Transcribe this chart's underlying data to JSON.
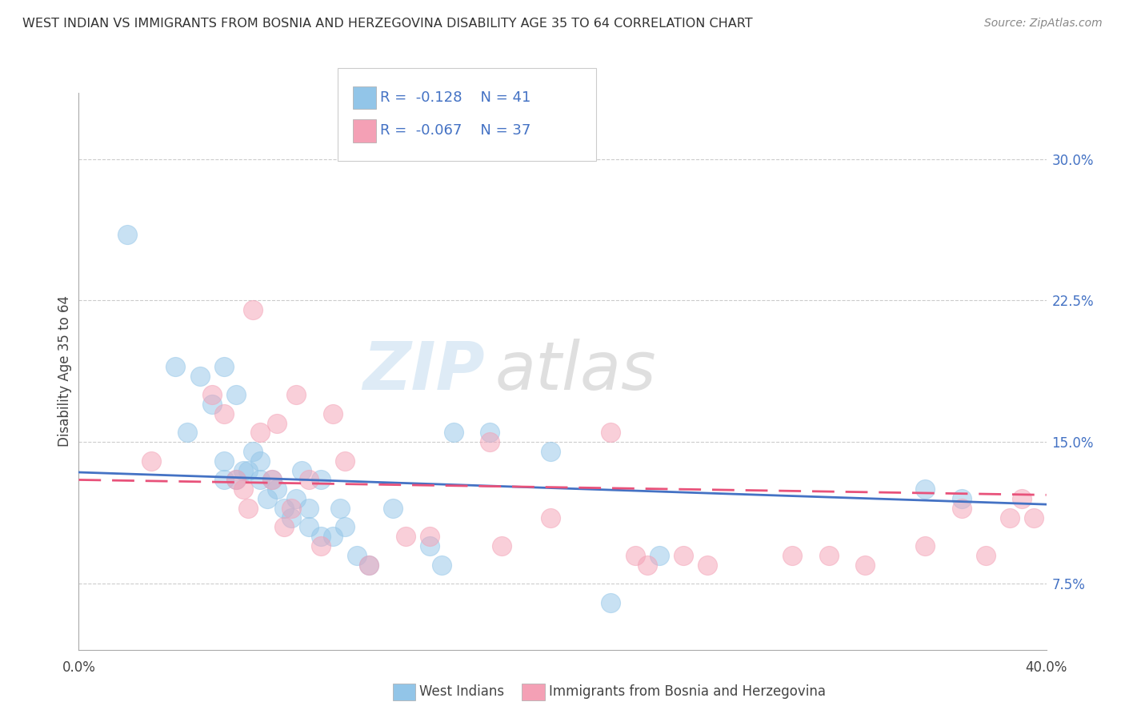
{
  "title": "WEST INDIAN VS IMMIGRANTS FROM BOSNIA AND HERZEGOVINA DISABILITY AGE 35 TO 64 CORRELATION CHART",
  "source": "Source: ZipAtlas.com",
  "ylabel": "Disability Age 35 to 64",
  "yticks": [
    0.075,
    0.15,
    0.225,
    0.3
  ],
  "ytick_labels": [
    "7.5%",
    "15.0%",
    "22.5%",
    "30.0%"
  ],
  "xlim": [
    0.0,
    0.4
  ],
  "ylim": [
    0.04,
    0.335
  ],
  "legend1_r": "-0.128",
  "legend1_n": "41",
  "legend2_r": "-0.067",
  "legend2_n": "37",
  "legend1_label": "West Indians",
  "legend2_label": "Immigrants from Bosnia and Herzegovina",
  "color_blue": "#92c5e8",
  "color_pink": "#f4a0b5",
  "watermark_zip": "ZIP",
  "watermark_atlas": "atlas",
  "blue_scatter_x": [
    0.02,
    0.04,
    0.045,
    0.05,
    0.055,
    0.06,
    0.06,
    0.06,
    0.065,
    0.065,
    0.068,
    0.07,
    0.072,
    0.075,
    0.075,
    0.078,
    0.08,
    0.082,
    0.085,
    0.088,
    0.09,
    0.092,
    0.095,
    0.095,
    0.1,
    0.1,
    0.105,
    0.108,
    0.11,
    0.115,
    0.12,
    0.13,
    0.145,
    0.15,
    0.155,
    0.17,
    0.195,
    0.22,
    0.24,
    0.35,
    0.365
  ],
  "blue_scatter_y": [
    0.26,
    0.19,
    0.155,
    0.185,
    0.17,
    0.19,
    0.13,
    0.14,
    0.175,
    0.13,
    0.135,
    0.135,
    0.145,
    0.13,
    0.14,
    0.12,
    0.13,
    0.125,
    0.115,
    0.11,
    0.12,
    0.135,
    0.105,
    0.115,
    0.1,
    0.13,
    0.1,
    0.115,
    0.105,
    0.09,
    0.085,
    0.115,
    0.095,
    0.085,
    0.155,
    0.155,
    0.145,
    0.065,
    0.09,
    0.125,
    0.12
  ],
  "pink_scatter_x": [
    0.03,
    0.055,
    0.06,
    0.065,
    0.068,
    0.07,
    0.072,
    0.075,
    0.08,
    0.082,
    0.085,
    0.088,
    0.09,
    0.095,
    0.1,
    0.105,
    0.11,
    0.12,
    0.135,
    0.145,
    0.17,
    0.175,
    0.195,
    0.22,
    0.23,
    0.235,
    0.25,
    0.26,
    0.295,
    0.31,
    0.325,
    0.35,
    0.365,
    0.375,
    0.385,
    0.39,
    0.395
  ],
  "pink_scatter_y": [
    0.14,
    0.175,
    0.165,
    0.13,
    0.125,
    0.115,
    0.22,
    0.155,
    0.13,
    0.16,
    0.105,
    0.115,
    0.175,
    0.13,
    0.095,
    0.165,
    0.14,
    0.085,
    0.1,
    0.1,
    0.15,
    0.095,
    0.11,
    0.155,
    0.09,
    0.085,
    0.09,
    0.085,
    0.09,
    0.09,
    0.085,
    0.095,
    0.115,
    0.09,
    0.11,
    0.12,
    0.11
  ],
  "blue_line_x": [
    0.0,
    0.4
  ],
  "blue_line_y": [
    0.134,
    0.117
  ],
  "pink_line_x": [
    0.0,
    0.4
  ],
  "pink_line_y": [
    0.13,
    0.122
  ]
}
